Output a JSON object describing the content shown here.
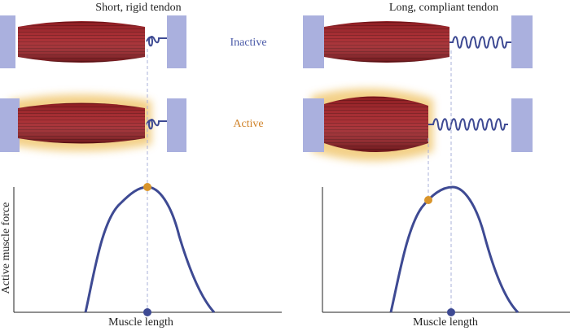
{
  "titles": {
    "left": "Short, rigid tendon",
    "right": "Long, compliant tendon"
  },
  "states": {
    "inactive": "Inactive",
    "active": "Active"
  },
  "axes": {
    "ylabel": "Active muscle force",
    "xlabel_left": "Muscle length",
    "xlabel_right": "Muscle length"
  },
  "colors": {
    "muscle": "#9b1d22",
    "muscle_dark": "#6e1014",
    "tendon": "#3e4a93",
    "wall": "#aab0de",
    "active_glow": "#e8b24a",
    "inactive_text": "#4a5aa8",
    "active_text": "#d0832a",
    "point_active": "#d9952b",
    "point_axis": "#3e4a93",
    "dash": "#a9b0da"
  }
}
